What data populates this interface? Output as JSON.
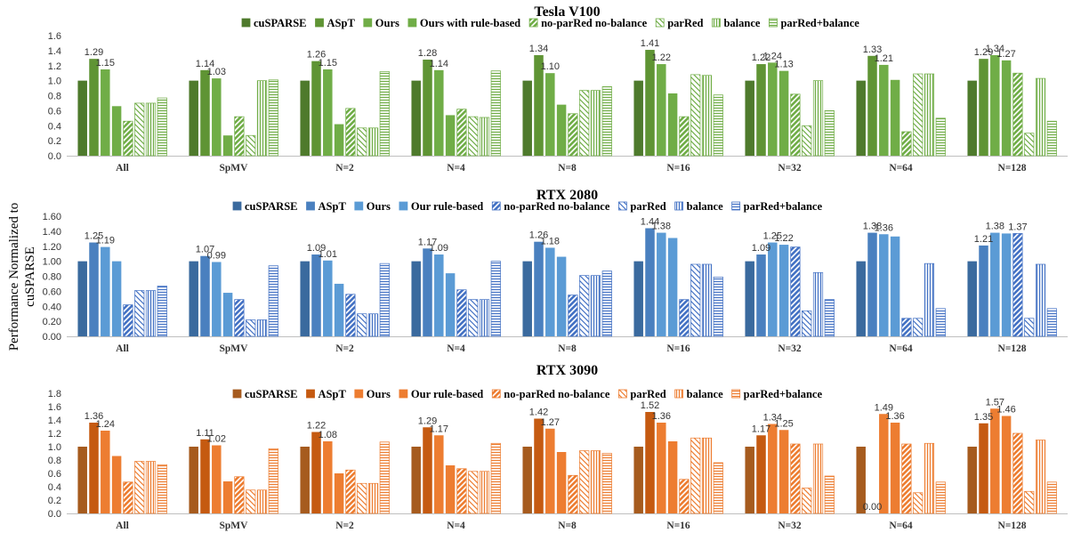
{
  "ylabel": "Performance Normalized to cuSPARSE",
  "chart_data": [
    {
      "type": "bar",
      "title": "Tesla V100",
      "ylim": [
        0,
        1.6
      ],
      "yticks": [
        "0.0",
        "0.2",
        "0.4",
        "0.6",
        "0.8",
        "1.0",
        "1.2",
        "1.4",
        "1.6"
      ],
      "grid": false,
      "legend": "top",
      "categories": [
        "All",
        "SpMV",
        "N=2",
        "N=4",
        "N=8",
        "N=16",
        "N=32",
        "N=64",
        "N=128"
      ],
      "series": [
        {
          "name": "cuSPARSE",
          "color": "#4e7a2c",
          "pattern": "solid",
          "values": [
            1.0,
            1.0,
            1.0,
            1.0,
            1.0,
            1.0,
            1.0,
            1.0,
            1.0
          ]
        },
        {
          "name": "ASpT",
          "color": "#5f9434",
          "pattern": "solid",
          "values": [
            1.29,
            1.14,
            1.26,
            1.28,
            1.34,
            1.41,
            1.22,
            1.33,
            1.29
          ]
        },
        {
          "name": "Ours",
          "color": "#70ad47",
          "pattern": "solid",
          "values": [
            1.15,
            1.03,
            1.15,
            1.14,
            1.1,
            1.22,
            1.24,
            1.21,
            1.34
          ]
        },
        {
          "name": "Ours with rule-based",
          "color": "#70ad47",
          "pattern": "solid",
          "values": [
            0.66,
            0.27,
            0.42,
            0.54,
            0.68,
            0.83,
            1.13,
            1.01,
            1.27
          ]
        },
        {
          "name": "no-parRed no-balance",
          "color": "#70ad47",
          "pattern": "diag",
          "values": [
            0.46,
            0.52,
            0.63,
            0.62,
            0.56,
            0.52,
            0.82,
            0.32,
            1.1
          ]
        },
        {
          "name": "parRed",
          "color": "#70ad47",
          "pattern": "diag-light",
          "values": [
            0.7,
            0.27,
            0.37,
            0.52,
            0.87,
            1.08,
            0.4,
            1.09,
            0.3
          ]
        },
        {
          "name": "balance",
          "color": "#70ad47",
          "pattern": "vert",
          "values": [
            0.7,
            1.0,
            0.37,
            0.51,
            0.87,
            1.07,
            1.0,
            1.09,
            1.03
          ]
        },
        {
          "name": "parRed+balance",
          "color": "#70ad47",
          "pattern": "horiz",
          "values": [
            0.77,
            1.01,
            1.12,
            1.13,
            0.92,
            0.81,
            0.6,
            0.5,
            0.46
          ]
        }
      ],
      "data_labels": [
        {
          "category": "All",
          "series": "ASpT",
          "text": "1.29"
        },
        {
          "category": "All",
          "series": "Ours",
          "text": "1.15"
        },
        {
          "category": "SpMV",
          "series": "ASpT",
          "text": "1.14"
        },
        {
          "category": "SpMV",
          "series": "Ours",
          "text": "1.03"
        },
        {
          "category": "N=2",
          "series": "ASpT",
          "text": "1.26"
        },
        {
          "category": "N=2",
          "series": "Ours",
          "text": "1.15"
        },
        {
          "category": "N=4",
          "series": "ASpT",
          "text": "1.28"
        },
        {
          "category": "N=4",
          "series": "Ours",
          "text": "1.14"
        },
        {
          "category": "N=8",
          "series": "ASpT",
          "text": "1.34"
        },
        {
          "category": "N=8",
          "series": "Ours",
          "text": "1.10"
        },
        {
          "category": "N=16",
          "series": "ASpT",
          "text": "1.41"
        },
        {
          "category": "N=16",
          "series": "Ours",
          "text": "1.22"
        },
        {
          "category": "N=32",
          "series": "ASpT",
          "text": "1.22"
        },
        {
          "category": "N=32",
          "series": "Ours",
          "text": "1.24"
        },
        {
          "category": "N=32",
          "series": "Ours with rule-based",
          "text": "1.13"
        },
        {
          "category": "N=64",
          "series": "ASpT",
          "text": "1.33"
        },
        {
          "category": "N=64",
          "series": "Ours",
          "text": "1.21"
        },
        {
          "category": "N=128",
          "series": "ASpT",
          "text": "1.29"
        },
        {
          "category": "N=128",
          "series": "Ours",
          "text": "1.34"
        },
        {
          "category": "N=128",
          "series": "Ours with rule-based",
          "text": "1.27"
        }
      ]
    },
    {
      "type": "bar",
      "title": "RTX 2080",
      "ylim": [
        0,
        1.6
      ],
      "yticks": [
        "0.00",
        "0.20",
        "0.40",
        "0.60",
        "0.80",
        "1.00",
        "1.20",
        "1.40",
        "1.60"
      ],
      "grid": false,
      "legend": "top",
      "categories": [
        "All",
        "SpMV",
        "N=2",
        "N=4",
        "N=8",
        "N=16",
        "N=32",
        "N=64",
        "N=128"
      ],
      "series": [
        {
          "name": "cuSPARSE",
          "color": "#3a6a9e",
          "pattern": "solid",
          "values": [
            1.0,
            1.0,
            1.0,
            1.0,
            1.0,
            1.0,
            1.0,
            1.0,
            1.0
          ]
        },
        {
          "name": "ASpT",
          "color": "#4a80bf",
          "pattern": "solid",
          "values": [
            1.25,
            1.07,
            1.09,
            1.17,
            1.26,
            1.44,
            1.09,
            1.38,
            1.21
          ]
        },
        {
          "name": "Ours",
          "color": "#5b9bd5",
          "pattern": "solid",
          "values": [
            1.19,
            0.99,
            1.01,
            1.09,
            1.18,
            1.38,
            1.25,
            1.36,
            1.38
          ]
        },
        {
          "name": "Our rule-based",
          "color": "#5b9bd5",
          "pattern": "solid",
          "values": [
            1.0,
            0.58,
            0.7,
            0.84,
            1.06,
            1.31,
            1.22,
            1.33,
            1.37
          ]
        },
        {
          "name": "no-parRed no-balance",
          "color": "#4472c4",
          "pattern": "diag",
          "values": [
            0.42,
            0.49,
            0.56,
            0.62,
            0.55,
            0.49,
            1.19,
            0.24,
            1.37
          ]
        },
        {
          "name": "parRed",
          "color": "#4472c4",
          "pattern": "diag-light",
          "values": [
            0.61,
            0.22,
            0.3,
            0.49,
            0.81,
            0.96,
            0.34,
            0.24,
            0.24
          ]
        },
        {
          "name": "balance",
          "color": "#4472c4",
          "pattern": "vert",
          "values": [
            0.61,
            0.22,
            0.3,
            0.49,
            0.81,
            0.96,
            0.85,
            0.97,
            0.96
          ]
        },
        {
          "name": "parRed+balance",
          "color": "#4472c4",
          "pattern": "horiz",
          "values": [
            0.67,
            0.94,
            0.97,
            1.0,
            0.87,
            0.79,
            0.49,
            0.37,
            0.37
          ]
        }
      ],
      "data_labels": [
        {
          "category": "All",
          "series": "ASpT",
          "text": "1.25"
        },
        {
          "category": "All",
          "series": "Ours",
          "text": "1.19"
        },
        {
          "category": "SpMV",
          "series": "ASpT",
          "text": "1.07"
        },
        {
          "category": "SpMV",
          "series": "Ours",
          "text": "0.99"
        },
        {
          "category": "N=2",
          "series": "ASpT",
          "text": "1.09"
        },
        {
          "category": "N=2",
          "series": "Ours",
          "text": "1.01"
        },
        {
          "category": "N=4",
          "series": "ASpT",
          "text": "1.17"
        },
        {
          "category": "N=4",
          "series": "Ours",
          "text": "1.09"
        },
        {
          "category": "N=8",
          "series": "ASpT",
          "text": "1.26"
        },
        {
          "category": "N=8",
          "series": "Ours",
          "text": "1.18"
        },
        {
          "category": "N=16",
          "series": "ASpT",
          "text": "1.44"
        },
        {
          "category": "N=16",
          "series": "Ours",
          "text": "1.38"
        },
        {
          "category": "N=32",
          "series": "ASpT",
          "text": "1.09"
        },
        {
          "category": "N=32",
          "series": "Ours",
          "text": "1.25"
        },
        {
          "category": "N=32",
          "series": "Our rule-based",
          "text": "1.22"
        },
        {
          "category": "N=64",
          "series": "ASpT",
          "text": "1.38"
        },
        {
          "category": "N=64",
          "series": "Ours",
          "text": "1.36"
        },
        {
          "category": "N=128",
          "series": "ASpT",
          "text": "1.21"
        },
        {
          "category": "N=128",
          "series": "Ours",
          "text": "1.38"
        },
        {
          "category": "N=128",
          "series": "no-parRed no-balance",
          "text": "1.37"
        }
      ]
    },
    {
      "type": "bar",
      "title": "RTX 3090",
      "ylim": [
        0,
        1.8
      ],
      "yticks": [
        "0.0",
        "0.2",
        "0.4",
        "0.6",
        "0.8",
        "1.0",
        "1.2",
        "1.4",
        "1.6",
        "1.8"
      ],
      "grid": false,
      "legend": "top",
      "categories": [
        "All",
        "SpMV",
        "N=2",
        "N=4",
        "N=8",
        "N=16",
        "N=32",
        "N=64",
        "N=128"
      ],
      "series": [
        {
          "name": "cuSPARSE",
          "color": "#a65b1e",
          "pattern": "solid",
          "values": [
            1.0,
            1.0,
            1.0,
            1.0,
            1.0,
            1.0,
            1.0,
            1.0,
            1.0
          ]
        },
        {
          "name": "ASpT",
          "color": "#c55a11",
          "pattern": "solid",
          "values": [
            1.36,
            1.11,
            1.22,
            1.29,
            1.42,
            1.52,
            1.17,
            0.0,
            1.35
          ]
        },
        {
          "name": "Ours",
          "color": "#ed7d31",
          "pattern": "solid",
          "values": [
            1.24,
            1.02,
            1.08,
            1.17,
            1.27,
            1.36,
            1.34,
            1.49,
            1.57
          ]
        },
        {
          "name": "Our rule-based",
          "color": "#ed7d31",
          "pattern": "solid",
          "values": [
            0.86,
            0.48,
            0.6,
            0.72,
            0.92,
            1.08,
            1.25,
            1.36,
            1.46
          ]
        },
        {
          "name": "no-parRed no-balance",
          "color": "#ed7d31",
          "pattern": "diag",
          "values": [
            0.47,
            0.55,
            0.65,
            0.67,
            0.57,
            0.51,
            1.04,
            1.04,
            1.2
          ]
        },
        {
          "name": "parRed",
          "color": "#ed7d31",
          "pattern": "diag-light",
          "values": [
            0.78,
            0.35,
            0.45,
            0.63,
            0.94,
            1.13,
            0.38,
            0.31,
            0.33
          ]
        },
        {
          "name": "balance",
          "color": "#ed7d31",
          "pattern": "vert",
          "values": [
            0.78,
            0.35,
            0.45,
            0.63,
            0.94,
            1.13,
            1.04,
            1.05,
            1.1
          ]
        },
        {
          "name": "parRed+balance",
          "color": "#ed7d31",
          "pattern": "horiz",
          "values": [
            0.73,
            0.97,
            1.07,
            1.05,
            0.9,
            0.76,
            0.56,
            0.47,
            0.47
          ]
        }
      ],
      "data_labels": [
        {
          "category": "All",
          "series": "ASpT",
          "text": "1.36"
        },
        {
          "category": "All",
          "series": "Ours",
          "text": "1.24"
        },
        {
          "category": "SpMV",
          "series": "ASpT",
          "text": "1.11"
        },
        {
          "category": "SpMV",
          "series": "Ours",
          "text": "1.02"
        },
        {
          "category": "N=2",
          "series": "ASpT",
          "text": "1.22"
        },
        {
          "category": "N=2",
          "series": "Ours",
          "text": "1.08"
        },
        {
          "category": "N=4",
          "series": "ASpT",
          "text": "1.29"
        },
        {
          "category": "N=4",
          "series": "Ours",
          "text": "1.17"
        },
        {
          "category": "N=8",
          "series": "ASpT",
          "text": "1.42"
        },
        {
          "category": "N=8",
          "series": "Ours",
          "text": "1.27"
        },
        {
          "category": "N=16",
          "series": "ASpT",
          "text": "1.52"
        },
        {
          "category": "N=16",
          "series": "Ours",
          "text": "1.36"
        },
        {
          "category": "N=32",
          "series": "ASpT",
          "text": "1.17"
        },
        {
          "category": "N=32",
          "series": "Ours",
          "text": "1.34"
        },
        {
          "category": "N=32",
          "series": "Our rule-based",
          "text": "1.25"
        },
        {
          "category": "N=64",
          "series": "ASpT",
          "text": "0.00"
        },
        {
          "category": "N=64",
          "series": "Ours",
          "text": "1.49"
        },
        {
          "category": "N=64",
          "series": "Our rule-based",
          "text": "1.36"
        },
        {
          "category": "N=128",
          "series": "ASpT",
          "text": "1.35"
        },
        {
          "category": "N=128",
          "series": "Ours",
          "text": "1.57"
        },
        {
          "category": "N=128",
          "series": "Our rule-based",
          "text": "1.46"
        }
      ]
    }
  ]
}
